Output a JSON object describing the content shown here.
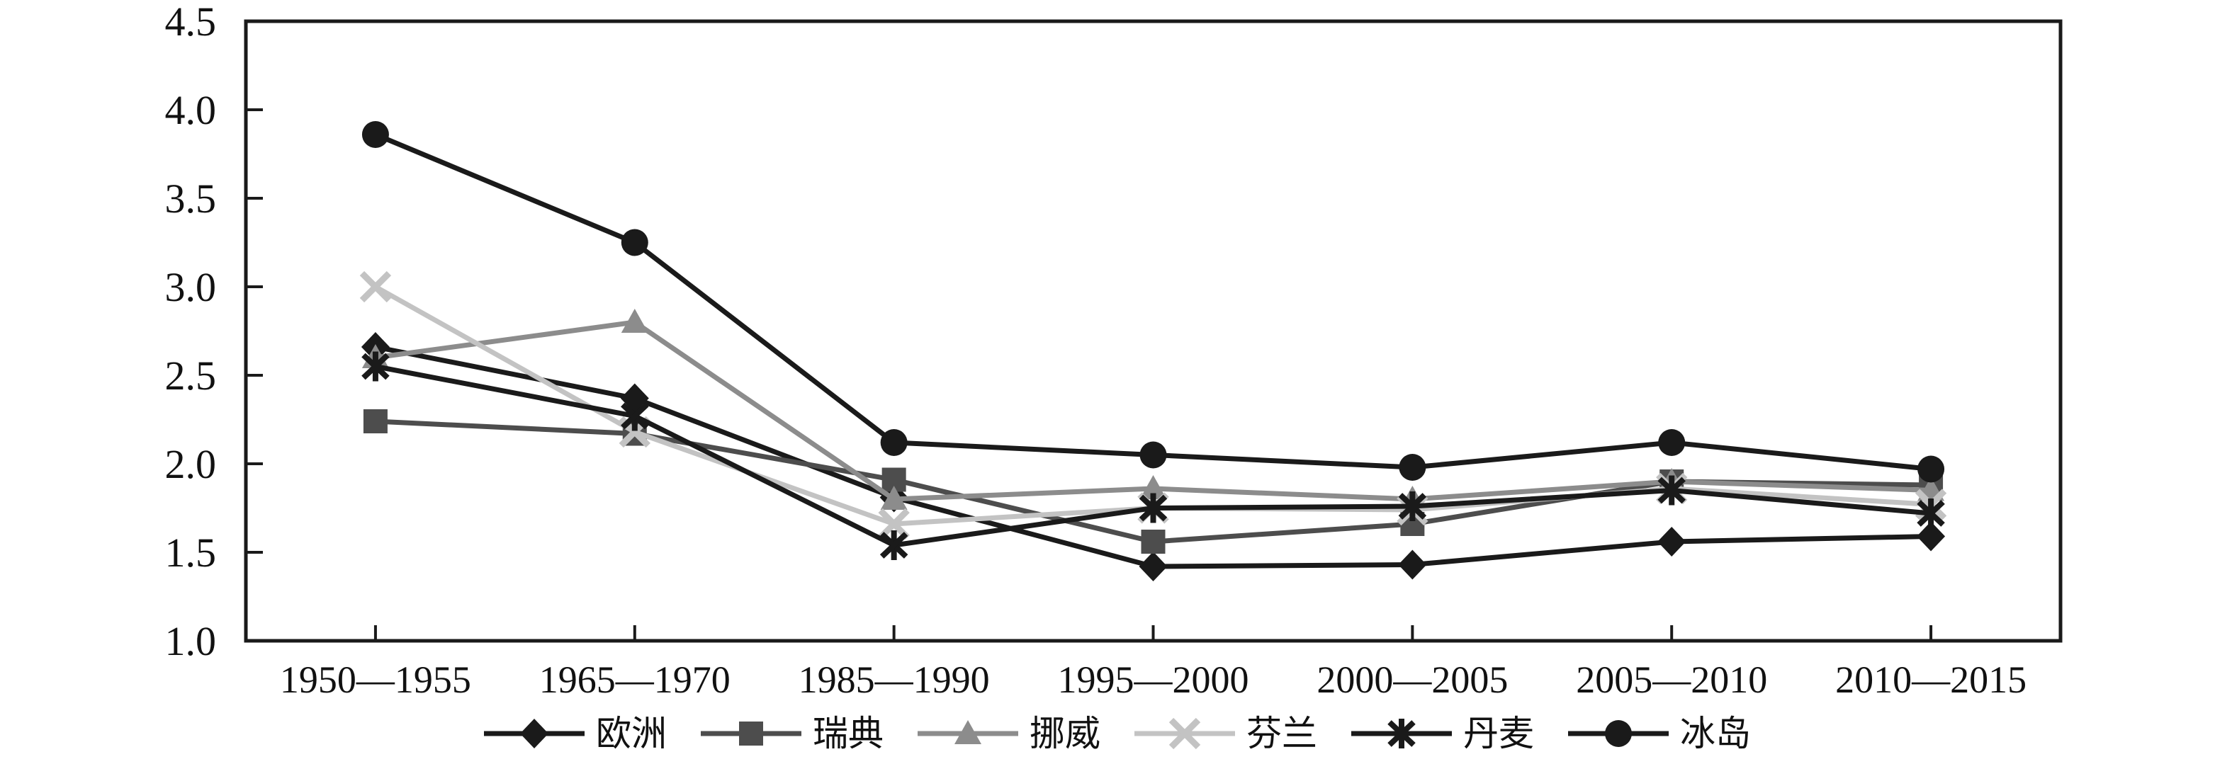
{
  "chart_data": {
    "type": "line",
    "title": "",
    "xlabel": "",
    "ylabel": "",
    "categories": [
      "1950—1955",
      "1965—1970",
      "1985—1990",
      "1995—2000",
      "2000—2005",
      "2005—2010",
      "2010—2015"
    ],
    "series": [
      {
        "key": "europe",
        "name": "欧洲",
        "marker": "diamond",
        "color": "#1a1a1a",
        "values": [
          2.66,
          2.37,
          1.81,
          1.42,
          1.43,
          1.56,
          1.59
        ]
      },
      {
        "key": "sweden",
        "name": "瑞典",
        "marker": "square",
        "color": "#4d4d4d",
        "values": [
          2.24,
          2.17,
          1.91,
          1.56,
          1.66,
          1.9,
          1.88
        ]
      },
      {
        "key": "norway",
        "name": "挪威",
        "marker": "triangle",
        "color": "#8c8c8c",
        "values": [
          2.6,
          2.8,
          1.8,
          1.86,
          1.8,
          1.9,
          1.85
        ]
      },
      {
        "key": "finland",
        "name": "芬兰",
        "marker": "x",
        "color": "#c3c3c3",
        "values": [
          3.0,
          2.18,
          1.66,
          1.75,
          1.74,
          1.86,
          1.77
        ]
      },
      {
        "key": "denmark",
        "name": "丹麦",
        "marker": "asterisk",
        "color": "#1a1a1a",
        "values": [
          2.55,
          2.27,
          1.54,
          1.75,
          1.76,
          1.85,
          1.72
        ]
      },
      {
        "key": "iceland",
        "name": "冰岛",
        "marker": "circle",
        "color": "#1a1a1a",
        "values": [
          3.86,
          3.25,
          2.12,
          2.05,
          1.98,
          2.12,
          1.97
        ]
      }
    ],
    "ylim": [
      1.0,
      4.5
    ],
    "ytick_step": 0.5,
    "ytick_labels": [
      "1.0",
      "1.5",
      "2.0",
      "2.5",
      "3.0",
      "3.5",
      "4.0",
      "4.5"
    ],
    "grid": false,
    "legend_position": "bottom",
    "axis_color": "#1a1a1a"
  }
}
